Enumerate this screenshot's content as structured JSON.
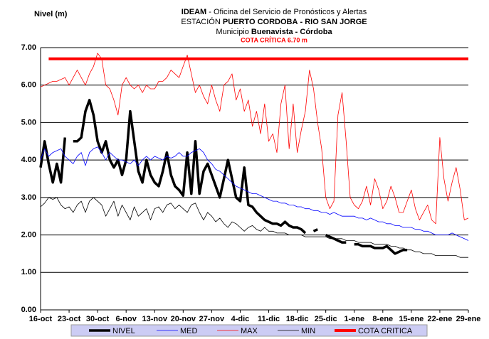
{
  "chart_data": {
    "type": "line",
    "ylabel": "Nivel (m)",
    "title_lines": [
      [
        "IDEAM",
        "- Oficina del Servicio de Pronósticos y Alertas"
      ],
      [
        "ESTACIÓN",
        "PUERTO CORDOBA",
        "- RIO SAN JORGE"
      ],
      [
        "Municipio",
        "Buenavista",
        "- Córdoba"
      ]
    ],
    "annotation": "COTA CRÍTICA 6.70 m",
    "categories": [
      "16-oct",
      null,
      null,
      null,
      null,
      null,
      null,
      "23-oct",
      null,
      null,
      null,
      null,
      null,
      null,
      "30-oct",
      null,
      null,
      null,
      null,
      null,
      null,
      "6-nov",
      null,
      null,
      null,
      null,
      null,
      null,
      "13-nov",
      null,
      null,
      null,
      null,
      null,
      null,
      "20-nov",
      null,
      null,
      null,
      null,
      null,
      null,
      "27-nov",
      null,
      null,
      null,
      null,
      null,
      null,
      "4-dic",
      null,
      null,
      null,
      null,
      null,
      null,
      "11-dic",
      null,
      null,
      null,
      null,
      null,
      null,
      "18-dic",
      null,
      null,
      null,
      null,
      null,
      null,
      "25-dic",
      null,
      null,
      null,
      null,
      null,
      null,
      "1-ene",
      null,
      null,
      null,
      null,
      null,
      null,
      "8-ene",
      null,
      null,
      null,
      null,
      null,
      null,
      "15-ene",
      null,
      null,
      null,
      null,
      null,
      null,
      "22-ene",
      null,
      null,
      null,
      null,
      null,
      null,
      "29-ene"
    ],
    "ylim": [
      0,
      7
    ],
    "yticks": [
      {
        "value": 0,
        "label": "0.00"
      },
      {
        "value": 1,
        "label": "1.00"
      },
      {
        "value": 2,
        "label": "2.00"
      },
      {
        "value": 3,
        "label": "3.00"
      },
      {
        "value": 4,
        "label": "4.00"
      },
      {
        "value": 5,
        "label": "5.00"
      },
      {
        "value": 6,
        "label": "6.00"
      },
      {
        "value": 7,
        "label": "7.00"
      }
    ],
    "grid": true,
    "series": [
      {
        "name": "NIVEL",
        "color": "#000000",
        "width": 3.5,
        "values": [
          3.8,
          4.5,
          3.9,
          3.4,
          3.9,
          3.4,
          4.6,
          null,
          4.5,
          4.5,
          4.6,
          5.3,
          5.6,
          5.2,
          4.5,
          4.2,
          4.5,
          4.0,
          3.8,
          4.0,
          3.6,
          4.0,
          5.3,
          4.5,
          3.7,
          3.4,
          4.0,
          3.6,
          3.4,
          3.3,
          3.7,
          4.2,
          3.6,
          3.3,
          3.2,
          3.05,
          4.2,
          3.1,
          4.5,
          3.1,
          3.7,
          3.9,
          3.6,
          3.3,
          3.0,
          3.5,
          4.0,
          3.5,
          3.0,
          2.9,
          3.8,
          2.8,
          2.75,
          2.6,
          2.5,
          2.4,
          2.35,
          2.3,
          2.3,
          2.25,
          2.35,
          2.25,
          2.2,
          2.2,
          2.15,
          2.05,
          null,
          2.1,
          2.15,
          null,
          2.0,
          1.95,
          1.9,
          1.85,
          1.8,
          1.8,
          null,
          1.75,
          1.75,
          1.7,
          1.7,
          1.7,
          1.65,
          1.65,
          1.65,
          1.7,
          1.6,
          1.5,
          1.55,
          1.6,
          1.6,
          null,
          null,
          null,
          null,
          null,
          null,
          null,
          null,
          null,
          null,
          null,
          null,
          null,
          null,
          null
        ]
      },
      {
        "name": "MED",
        "color": "#0000ff",
        "width": 0.8,
        "values": [
          4.0,
          4.3,
          4.1,
          4.2,
          4.25,
          4.3,
          4.1,
          4.0,
          3.9,
          4.1,
          4.2,
          3.85,
          4.2,
          4.3,
          4.35,
          4.2,
          4.0,
          4.2,
          4.1,
          4.0,
          4.0,
          3.95,
          3.9,
          4.0,
          3.85,
          4.0,
          4.1,
          4.0,
          4.1,
          4.05,
          4.0,
          4.1,
          4.05,
          4.1,
          4.2,
          4.1,
          4.1,
          4.2,
          4.25,
          4.3,
          4.2,
          4.0,
          3.9,
          3.75,
          3.7,
          3.6,
          3.5,
          3.4,
          3.3,
          3.25,
          3.2,
          3.15,
          3.1,
          3.1,
          3.05,
          3.0,
          2.95,
          2.9,
          2.9,
          2.85,
          2.85,
          2.8,
          2.8,
          2.75,
          2.75,
          2.7,
          2.7,
          2.65,
          2.65,
          2.6,
          2.6,
          2.55,
          2.6,
          2.55,
          2.5,
          2.5,
          2.5,
          2.5,
          2.45,
          2.45,
          2.4,
          2.45,
          2.4,
          2.35,
          2.35,
          2.3,
          2.3,
          2.25,
          2.25,
          2.2,
          2.2,
          2.2,
          2.15,
          2.15,
          2.1,
          2.1,
          2.05,
          2.0,
          2.0,
          2.0,
          2.0,
          2.05,
          2.0,
          1.95,
          1.9,
          1.85
        ]
      },
      {
        "name": "MAX",
        "color": "#ff0000",
        "width": 0.8,
        "values": [
          5.95,
          6.0,
          6.05,
          6.1,
          6.1,
          6.15,
          6.2,
          6.0,
          6.2,
          6.4,
          6.2,
          6.0,
          6.3,
          6.5,
          6.85,
          6.7,
          6.0,
          5.9,
          5.6,
          5.2,
          6.0,
          6.2,
          6.0,
          5.9,
          6.0,
          5.8,
          6.0,
          5.9,
          5.9,
          6.1,
          6.1,
          6.2,
          6.4,
          6.3,
          6.2,
          6.5,
          6.8,
          6.3,
          5.8,
          6.0,
          5.7,
          5.5,
          6.0,
          5.6,
          5.3,
          6.0,
          6.1,
          6.3,
          5.6,
          5.9,
          5.3,
          5.6,
          4.9,
          5.3,
          4.7,
          5.5,
          4.5,
          4.7,
          4.2,
          5.5,
          6.0,
          4.3,
          5.5,
          4.2,
          4.8,
          5.3,
          6.4,
          5.9,
          5.0,
          4.3,
          3.0,
          2.7,
          2.9,
          5.2,
          5.8,
          4.5,
          3.0,
          2.8,
          2.7,
          2.9,
          3.3,
          2.8,
          3.5,
          3.2,
          2.7,
          2.9,
          3.3,
          3.0,
          2.6,
          2.6,
          2.9,
          3.2,
          2.7,
          2.4,
          2.6,
          2.8,
          2.4,
          2.3,
          4.6,
          3.5,
          2.9,
          3.4,
          3.8,
          3.2,
          2.4,
          2.45
        ]
      },
      {
        "name": "MIN",
        "color": "#000000",
        "width": 0.8,
        "values": [
          2.75,
          2.85,
          3.0,
          2.95,
          3.0,
          2.8,
          2.7,
          2.75,
          2.6,
          2.8,
          2.9,
          2.6,
          2.9,
          3.0,
          2.9,
          2.8,
          2.5,
          2.7,
          2.9,
          2.5,
          2.8,
          2.6,
          2.4,
          2.75,
          2.5,
          2.6,
          2.7,
          2.4,
          2.7,
          2.75,
          2.6,
          2.8,
          2.85,
          2.7,
          2.8,
          2.7,
          2.6,
          2.8,
          2.85,
          2.6,
          2.4,
          2.6,
          2.5,
          2.35,
          2.45,
          2.3,
          2.2,
          2.35,
          2.3,
          2.2,
          2.1,
          2.2,
          2.25,
          2.15,
          2.1,
          2.2,
          2.1,
          2.1,
          2.05,
          2.05,
          2.05,
          2.0,
          2.0,
          2.0,
          2.0,
          1.95,
          1.95,
          1.95,
          1.95,
          1.95,
          1.95,
          1.9,
          1.9,
          1.9,
          1.9,
          1.85,
          1.85,
          1.85,
          1.8,
          1.8,
          1.8,
          1.8,
          1.75,
          1.75,
          1.75,
          1.75,
          1.7,
          1.7,
          1.65,
          1.65,
          1.6,
          1.6,
          1.55,
          1.55,
          1.5,
          1.5,
          1.5,
          1.45,
          1.45,
          1.45,
          1.45,
          1.45,
          1.45,
          1.4,
          1.4,
          1.4
        ]
      },
      {
        "name": "COTA CRITICA",
        "color": "#ff0000",
        "width": 4,
        "values": [
          null,
          null,
          6.7,
          6.7,
          6.7,
          6.7,
          6.7,
          6.7,
          6.7,
          6.7,
          6.7,
          6.7,
          6.7,
          6.7,
          6.7,
          6.7,
          6.7,
          6.7,
          6.7,
          6.7,
          6.7,
          6.7,
          6.7,
          6.7,
          6.7,
          6.7,
          6.7,
          6.7,
          6.7,
          6.7,
          6.7,
          6.7,
          6.7,
          6.7,
          6.7,
          6.7,
          6.7,
          6.7,
          6.7,
          6.7,
          6.7,
          6.7,
          6.7,
          6.7,
          6.7,
          6.7,
          6.7,
          6.7,
          6.7,
          6.7,
          6.7,
          6.7,
          6.7,
          6.7,
          6.7,
          6.7,
          6.7,
          6.7,
          6.7,
          6.7,
          6.7,
          6.7,
          6.7,
          6.7,
          6.7,
          6.7,
          6.7,
          6.7,
          6.7,
          6.7,
          6.7,
          6.7,
          6.7,
          6.7,
          6.7,
          6.7,
          6.7,
          6.7,
          6.7,
          6.7,
          6.7,
          6.7,
          6.7,
          6.7,
          6.7,
          6.7,
          6.7,
          6.7,
          6.7,
          6.7,
          6.7,
          6.7,
          6.7,
          6.7,
          6.7,
          6.7,
          6.7,
          6.7,
          6.7,
          6.7,
          6.7,
          6.7,
          6.7,
          6.7,
          6.7,
          6.7
        ]
      }
    ]
  }
}
